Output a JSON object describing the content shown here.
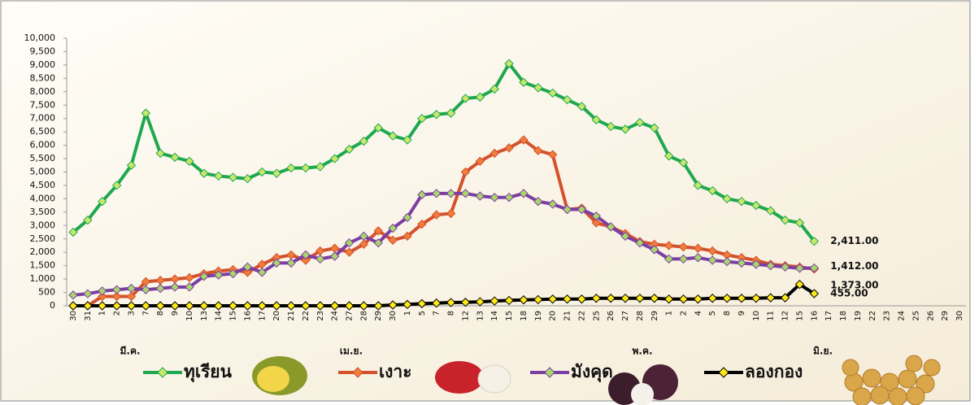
{
  "chart_data": {
    "type": "line",
    "categories": [
      "30",
      "31",
      "1",
      "2",
      "3",
      "7",
      "8",
      "9",
      "10",
      "13",
      "14",
      "15",
      "16",
      "17",
      "20",
      "21",
      "22",
      "23",
      "24",
      "27",
      "28",
      "29",
      "30",
      "1",
      "5",
      "7",
      "8",
      "12",
      "13",
      "14",
      "15",
      "18",
      "19",
      "20",
      "21",
      "22",
      "25",
      "26",
      "27",
      "28",
      "29",
      "1",
      "2",
      "4",
      "5",
      "8",
      "9",
      "10",
      "11",
      "12",
      "15",
      "16",
      "17",
      "18",
      "19",
      "22",
      "23",
      "24",
      "25",
      "26",
      "29",
      "30"
    ],
    "month_labels": [
      "มี.ค.",
      "เม.ย.",
      "พ.ค.",
      "มิ.ย."
    ],
    "ylim": [
      0,
      10000
    ],
    "yticks": [
      0,
      500,
      {
        "value": 1000,
        "label": "1,000"
      },
      {
        "value": 1500,
        "label": "1,500"
      },
      {
        "value": 2000,
        "label": "2,000"
      },
      {
        "value": 2500,
        "label": "2,500"
      },
      {
        "value": 3000,
        "label": "3,000"
      },
      {
        "value": 3500,
        "label": "3,500"
      },
      {
        "value": 4000,
        "label": "4,000"
      },
      {
        "value": 4500,
        "label": "4,500"
      },
      {
        "value": 5000,
        "label": "5,000"
      },
      {
        "value": 5500,
        "label": "5,500"
      },
      {
        "value": 6000,
        "label": "6,000"
      },
      {
        "value": 6500,
        "label": "6,500"
      },
      {
        "value": 7000,
        "label": "7,000"
      },
      {
        "value": 7500,
        "label": "7,500"
      },
      {
        "value": 8000,
        "label": "8,000"
      },
      {
        "value": 8500,
        "label": "8,500"
      },
      {
        "value": 9000,
        "label": "9,000"
      },
      {
        "value": 9500,
        "label": "9,500"
      },
      {
        "value": 10000,
        "label": "10,000"
      }
    ],
    "grid": false,
    "legend": "bottom",
    "series": [
      {
        "name": "ทุเรียน",
        "color": "#1fa84f",
        "marker_color": "#c9e86b",
        "label_color": "#1fa84f",
        "values": [
          2750,
          3200,
          3900,
          4500,
          5250,
          7200,
          5700,
          5550,
          5400,
          4950,
          4850,
          4800,
          4750,
          5000,
          4950,
          5150,
          5150,
          5200,
          5500,
          5850,
          6150,
          6650,
          6350,
          6200,
          7000,
          7150,
          7200,
          7750,
          7800,
          8100,
          9050,
          8350,
          8150,
          7950,
          7700,
          7450,
          6950,
          6700,
          6600,
          6850,
          6650,
          5600,
          5350,
          4500,
          4300,
          4000,
          3900,
          3750,
          3550,
          3200,
          3100,
          2411,
          null,
          null,
          null,
          null,
          null,
          null,
          null,
          null,
          null,
          null
        ],
        "value_labels": [
          null,
          null,
          null,
          null,
          null,
          null,
          null,
          null,
          null,
          null,
          null,
          null,
          null,
          null,
          null,
          null,
          null,
          null,
          null,
          null,
          null,
          null,
          null,
          null,
          null,
          null,
          null,
          null,
          null,
          null,
          null,
          null,
          null,
          null,
          null,
          null,
          null,
          null,
          null,
          null,
          null,
          null,
          null,
          null,
          null,
          null,
          null,
          null,
          null,
          null,
          null,
          "2,411.00",
          null,
          null,
          null,
          null,
          null,
          null,
          null,
          null,
          null,
          null
        ]
      },
      {
        "name": "เงาะ",
        "color": "#d4512c",
        "marker_color": "#ef7d3c",
        "label_color": "#ff2020",
        "values": [
          0,
          0,
          350,
          350,
          350,
          900,
          950,
          1000,
          1050,
          1200,
          1300,
          1350,
          1250,
          1550,
          1800,
          1900,
          1700,
          2050,
          2150,
          2000,
          2300,
          2800,
          2450,
          2600,
          3050,
          3400,
          3450,
          5000,
          5400,
          5700,
          5900,
          6200,
          5800,
          5650,
          3600,
          3650,
          3100,
          2950,
          2700,
          2400,
          2300,
          2250,
          2200,
          2150,
          2050,
          1900,
          1800,
          1700,
          1550,
          1500,
          1450,
          1373,
          null,
          null,
          null,
          null,
          null,
          null,
          null,
          null,
          null,
          null
        ],
        "value_labels": [
          null,
          null,
          null,
          null,
          null,
          null,
          null,
          null,
          null,
          null,
          null,
          null,
          null,
          null,
          null,
          null,
          null,
          null,
          null,
          null,
          null,
          null,
          null,
          null,
          null,
          null,
          null,
          null,
          null,
          null,
          null,
          null,
          null,
          null,
          null,
          null,
          null,
          null,
          null,
          null,
          null,
          null,
          null,
          null,
          null,
          null,
          null,
          null,
          null,
          null,
          null,
          "1,373.00",
          null,
          null,
          null,
          null,
          null,
          null,
          null,
          null,
          null,
          null
        ]
      },
      {
        "name": "มังคุด",
        "color": "#7b3fa3",
        "marker_color": "#a9d66a",
        "label_color": "#1f3c8c",
        "values": [
          400,
          450,
          550,
          600,
          650,
          600,
          650,
          700,
          700,
          1100,
          1150,
          1200,
          1450,
          1250,
          1600,
          1600,
          1900,
          1750,
          1850,
          2350,
          2600,
          2350,
          2900,
          3300,
          4150,
          4200,
          4200,
          4200,
          4100,
          4050,
          4050,
          4200,
          3900,
          3800,
          3600,
          3600,
          3350,
          2950,
          2600,
          2350,
          2100,
          1750,
          1750,
          1800,
          1700,
          1650,
          1600,
          1550,
          1500,
          1450,
          1400,
          1412,
          null,
          null,
          null,
          null,
          null,
          null,
          null,
          null,
          null,
          null
        ],
        "value_labels": [
          null,
          null,
          null,
          null,
          null,
          null,
          null,
          null,
          null,
          null,
          null,
          null,
          null,
          null,
          null,
          null,
          null,
          null,
          null,
          null,
          null,
          null,
          null,
          null,
          null,
          null,
          null,
          null,
          null,
          null,
          null,
          null,
          null,
          null,
          null,
          null,
          null,
          null,
          null,
          null,
          null,
          null,
          null,
          null,
          null,
          null,
          null,
          null,
          null,
          null,
          null,
          "1,412.00",
          null,
          null,
          null,
          null,
          null,
          null,
          null,
          null,
          null,
          null
        ]
      },
      {
        "name": "ลองกอง",
        "color": "#000000",
        "marker_color": "#ffe81a",
        "label_color": "#222222",
        "values": [
          0,
          0,
          0,
          0,
          0,
          0,
          0,
          0,
          0,
          0,
          0,
          0,
          0,
          0,
          0,
          0,
          0,
          0,
          0,
          0,
          0,
          0,
          30,
          50,
          80,
          100,
          120,
          130,
          150,
          180,
          200,
          220,
          230,
          250,
          250,
          250,
          280,
          280,
          280,
          280,
          280,
          250,
          250,
          250,
          280,
          280,
          280,
          280,
          300,
          300,
          800,
          455,
          null,
          null,
          null,
          null,
          null,
          null,
          null,
          null,
          null,
          null
        ],
        "value_labels": [
          null,
          null,
          null,
          null,
          null,
          null,
          null,
          null,
          null,
          null,
          null,
          null,
          null,
          null,
          null,
          null,
          null,
          null,
          null,
          null,
          null,
          null,
          null,
          null,
          null,
          null,
          null,
          null,
          null,
          null,
          null,
          null,
          null,
          null,
          null,
          null,
          null,
          null,
          null,
          null,
          null,
          null,
          null,
          null,
          null,
          null,
          null,
          null,
          null,
          null,
          null,
          "455.00",
          null,
          null,
          null,
          null,
          null,
          null,
          null,
          null,
          null,
          null
        ]
      }
    ]
  }
}
